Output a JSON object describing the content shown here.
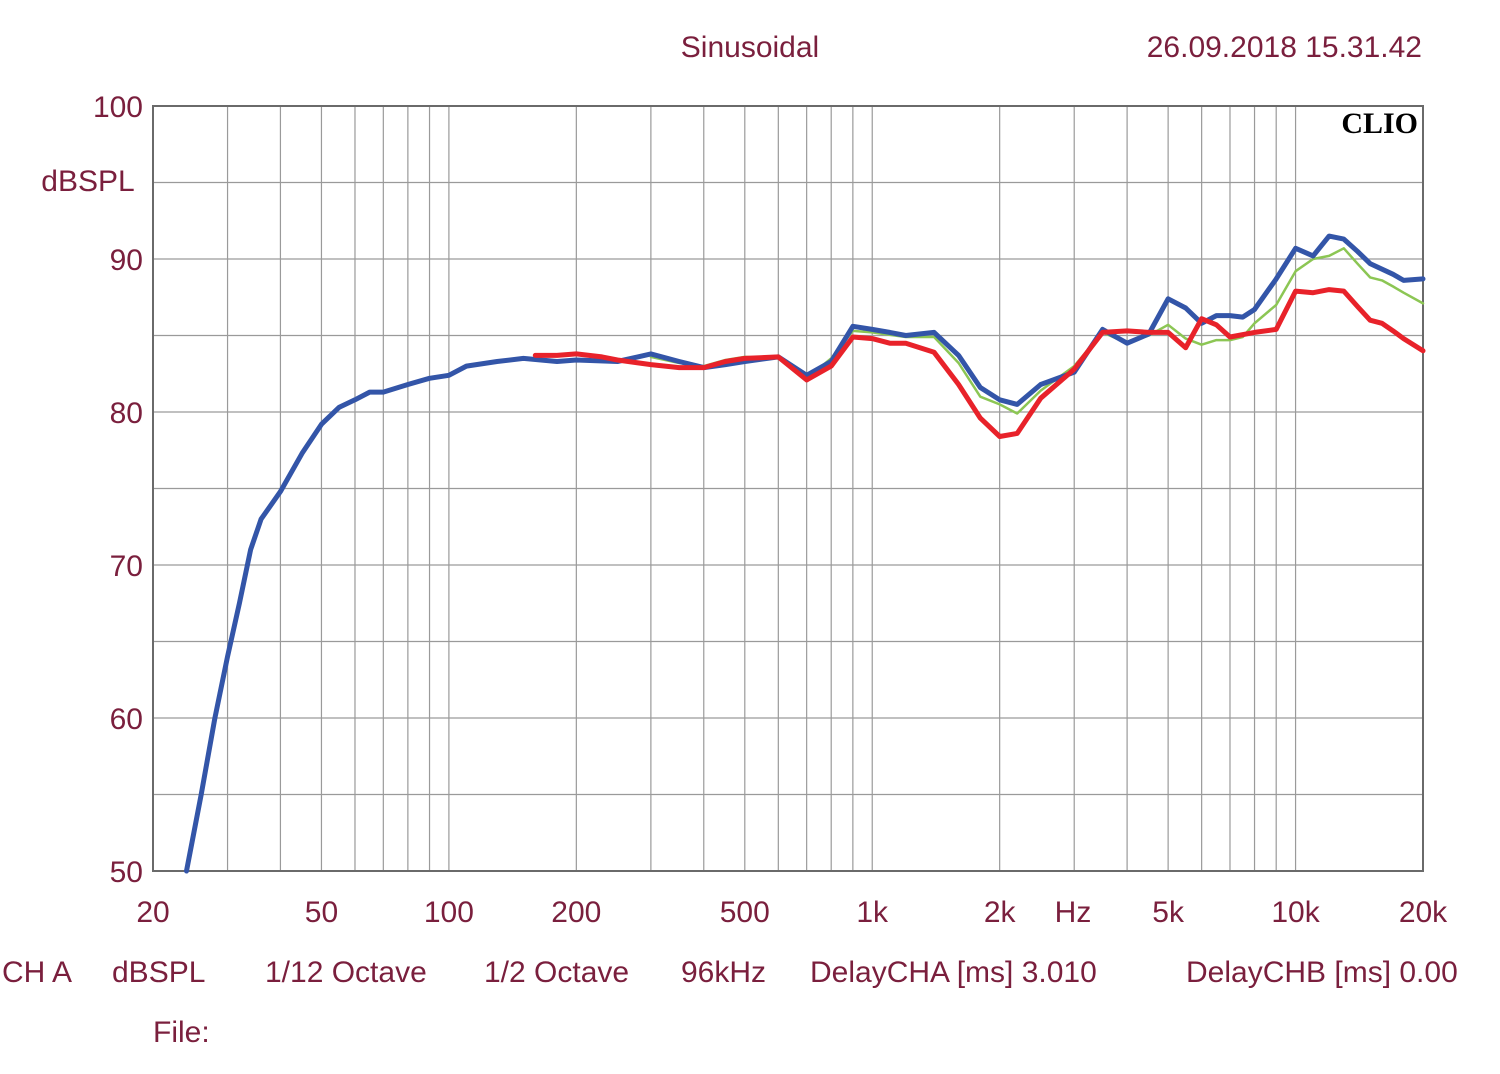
{
  "header": {
    "mode": "Sinusoidal",
    "timestamp": "26.09.2018 15.31.42",
    "brand": "CLIO"
  },
  "footer": {
    "channel": "CH A",
    "unit": "dBSPL",
    "resolution": "1/12 Octave",
    "smoothing": "1/2 Octave",
    "sample_rate": "96kHz",
    "delay_a": "DelayCHA [ms] 3.010",
    "delay_b": "DelayCHB [ms] 0.00",
    "file_label": "File:"
  },
  "colors": {
    "text": "#7a1f3d",
    "grid": "#9a9a9a",
    "axis": "#6a6a6a",
    "blue_series": "#3355a8",
    "red_series": "#e8222a",
    "green_series": "#8cc654"
  },
  "chart_data": {
    "type": "line",
    "title": "",
    "xlabel": "Hz",
    "ylabel": "dBSPL",
    "x_scale": "log",
    "xlim": [
      20,
      20000
    ],
    "ylim": [
      50,
      100
    ],
    "grid": true,
    "legend": "none",
    "y_ticks": [
      {
        "value": 100,
        "label": "100"
      },
      {
        "value": 90,
        "label": "90"
      },
      {
        "value": 80,
        "label": "80"
      },
      {
        "value": 70,
        "label": "70"
      },
      {
        "value": 60,
        "label": "60"
      },
      {
        "value": 50,
        "label": "50"
      }
    ],
    "x_ticks": [
      {
        "value": 20,
        "label": "20"
      },
      {
        "value": 50,
        "label": "50"
      },
      {
        "value": 100,
        "label": "100"
      },
      {
        "value": 200,
        "label": "200"
      },
      {
        "value": 500,
        "label": "500"
      },
      {
        "value": 1000,
        "label": "1k"
      },
      {
        "value": 2000,
        "label": "2k"
      },
      {
        "value": 5000,
        "label": "5k"
      },
      {
        "value": 10000,
        "label": "10k"
      },
      {
        "value": 20000,
        "label": "20k"
      }
    ],
    "series": [
      {
        "color": "#8cc654",
        "points": [
          [
            300,
            83.6
          ],
          [
            350,
            83.2
          ],
          [
            400,
            83.0
          ],
          [
            450,
            83.4
          ],
          [
            500,
            83.6
          ],
          [
            600,
            83.5
          ],
          [
            700,
            82.2
          ],
          [
            800,
            83.5
          ],
          [
            900,
            85.3
          ],
          [
            1000,
            85.2
          ],
          [
            1200,
            84.9
          ],
          [
            1400,
            84.9
          ],
          [
            1600,
            83.2
          ],
          [
            1800,
            81.0
          ],
          [
            2000,
            80.5
          ],
          [
            2200,
            79.9
          ],
          [
            2500,
            81.4
          ],
          [
            3000,
            83.0
          ],
          [
            3500,
            85.2
          ],
          [
            4000,
            84.5
          ],
          [
            4500,
            85.0
          ],
          [
            5000,
            85.7
          ],
          [
            5500,
            84.8
          ],
          [
            6000,
            84.4
          ],
          [
            6500,
            84.7
          ],
          [
            7000,
            84.7
          ],
          [
            7500,
            84.9
          ],
          [
            8000,
            85.8
          ],
          [
            9000,
            87.0
          ],
          [
            10000,
            89.2
          ],
          [
            11000,
            90.0
          ],
          [
            12000,
            90.2
          ],
          [
            13000,
            90.7
          ],
          [
            14000,
            89.7
          ],
          [
            15000,
            88.8
          ],
          [
            16000,
            88.6
          ],
          [
            17000,
            88.2
          ],
          [
            18000,
            87.8
          ],
          [
            20000,
            87.1
          ]
        ]
      },
      {
        "color": "#3355a8",
        "points": [
          [
            24,
            50
          ],
          [
            26,
            55
          ],
          [
            28,
            60
          ],
          [
            30,
            64
          ],
          [
            32,
            67.5
          ],
          [
            34,
            71
          ],
          [
            36,
            73.0
          ],
          [
            40,
            74.8
          ],
          [
            45,
            77.3
          ],
          [
            50,
            79.2
          ],
          [
            55,
            80.3
          ],
          [
            60,
            80.8
          ],
          [
            65,
            81.3
          ],
          [
            70,
            81.3
          ],
          [
            80,
            81.8
          ],
          [
            90,
            82.2
          ],
          [
            100,
            82.4
          ],
          [
            110,
            83.0
          ],
          [
            130,
            83.3
          ],
          [
            150,
            83.5
          ],
          [
            180,
            83.3
          ],
          [
            200,
            83.4
          ],
          [
            250,
            83.3
          ],
          [
            300,
            83.8
          ],
          [
            350,
            83.3
          ],
          [
            400,
            82.9
          ],
          [
            450,
            83.1
          ],
          [
            500,
            83.3
          ],
          [
            600,
            83.6
          ],
          [
            700,
            82.4
          ],
          [
            800,
            83.3
          ],
          [
            900,
            85.6
          ],
          [
            1000,
            85.4
          ],
          [
            1100,
            85.2
          ],
          [
            1200,
            85.0
          ],
          [
            1400,
            85.2
          ],
          [
            1600,
            83.7
          ],
          [
            1800,
            81.6
          ],
          [
            2000,
            80.8
          ],
          [
            2200,
            80.5
          ],
          [
            2500,
            81.8
          ],
          [
            3000,
            82.6
          ],
          [
            3500,
            85.4
          ],
          [
            4000,
            84.5
          ],
          [
            4500,
            85.1
          ],
          [
            5000,
            87.4
          ],
          [
            5500,
            86.8
          ],
          [
            6000,
            85.8
          ],
          [
            6500,
            86.3
          ],
          [
            7000,
            86.3
          ],
          [
            7500,
            86.2
          ],
          [
            8000,
            86.7
          ],
          [
            9000,
            88.7
          ],
          [
            10000,
            90.7
          ],
          [
            11000,
            90.2
          ],
          [
            12000,
            91.5
          ],
          [
            13000,
            91.3
          ],
          [
            14000,
            90.5
          ],
          [
            15000,
            89.7
          ],
          [
            17000,
            89.0
          ],
          [
            18000,
            88.6
          ],
          [
            20000,
            88.7
          ]
        ]
      },
      {
        "color": "#e8222a",
        "points": [
          [
            160,
            83.7
          ],
          [
            180,
            83.7
          ],
          [
            200,
            83.8
          ],
          [
            230,
            83.6
          ],
          [
            250,
            83.4
          ],
          [
            300,
            83.1
          ],
          [
            350,
            82.9
          ],
          [
            400,
            82.9
          ],
          [
            450,
            83.3
          ],
          [
            500,
            83.5
          ],
          [
            600,
            83.6
          ],
          [
            700,
            82.1
          ],
          [
            800,
            83.0
          ],
          [
            900,
            84.9
          ],
          [
            1000,
            84.8
          ],
          [
            1100,
            84.5
          ],
          [
            1200,
            84.5
          ],
          [
            1400,
            83.9
          ],
          [
            1600,
            81.8
          ],
          [
            1800,
            79.6
          ],
          [
            2000,
            78.4
          ],
          [
            2200,
            78.6
          ],
          [
            2500,
            80.9
          ],
          [
            3000,
            82.8
          ],
          [
            3500,
            85.2
          ],
          [
            4000,
            85.3
          ],
          [
            4500,
            85.2
          ],
          [
            5000,
            85.2
          ],
          [
            5500,
            84.2
          ],
          [
            6000,
            86.1
          ],
          [
            6500,
            85.7
          ],
          [
            7000,
            84.9
          ],
          [
            8000,
            85.2
          ],
          [
            9000,
            85.4
          ],
          [
            10000,
            87.9
          ],
          [
            11000,
            87.8
          ],
          [
            12000,
            88.0
          ],
          [
            13000,
            87.9
          ],
          [
            14000,
            86.9
          ],
          [
            15000,
            86.0
          ],
          [
            16000,
            85.8
          ],
          [
            17000,
            85.3
          ],
          [
            18000,
            84.8
          ],
          [
            20000,
            84.0
          ]
        ]
      }
    ]
  }
}
